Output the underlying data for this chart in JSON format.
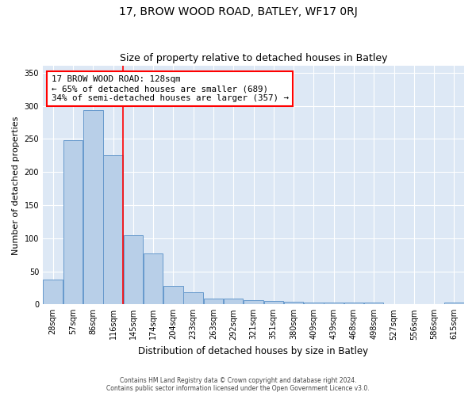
{
  "title": "17, BROW WOOD ROAD, BATLEY, WF17 0RJ",
  "subtitle": "Size of property relative to detached houses in Batley",
  "xlabel": "Distribution of detached houses by size in Batley",
  "ylabel": "Number of detached properties",
  "categories": [
    "28sqm",
    "57sqm",
    "86sqm",
    "116sqm",
    "145sqm",
    "174sqm",
    "204sqm",
    "233sqm",
    "263sqm",
    "292sqm",
    "321sqm",
    "351sqm",
    "380sqm",
    "409sqm",
    "439sqm",
    "468sqm",
    "498sqm",
    "527sqm",
    "556sqm",
    "586sqm",
    "615sqm"
  ],
  "values": [
    38,
    248,
    293,
    225,
    104,
    77,
    28,
    18,
    9,
    9,
    6,
    5,
    4,
    3,
    3,
    3,
    3,
    0,
    0,
    0,
    3
  ],
  "bar_color": "#b8cfe8",
  "bar_edge_color": "#6699cc",
  "bar_edge_width": 0.7,
  "red_line_x": 3.5,
  "ylim": [
    0,
    360
  ],
  "yticks": [
    0,
    50,
    100,
    150,
    200,
    250,
    300,
    350
  ],
  "bg_color": "#dde8f5",
  "grid_color": "#ffffff",
  "annotation_text": "17 BROW WOOD ROAD: 128sqm\n← 65% of detached houses are smaller (689)\n34% of semi-detached houses are larger (357) →",
  "title_fontsize": 10,
  "subtitle_fontsize": 9,
  "ylabel_fontsize": 8,
  "xlabel_fontsize": 8.5,
  "tick_fontsize": 7,
  "footer_line1": "Contains HM Land Registry data © Crown copyright and database right 2024.",
  "footer_line2": "Contains public sector information licensed under the Open Government Licence v3.0."
}
